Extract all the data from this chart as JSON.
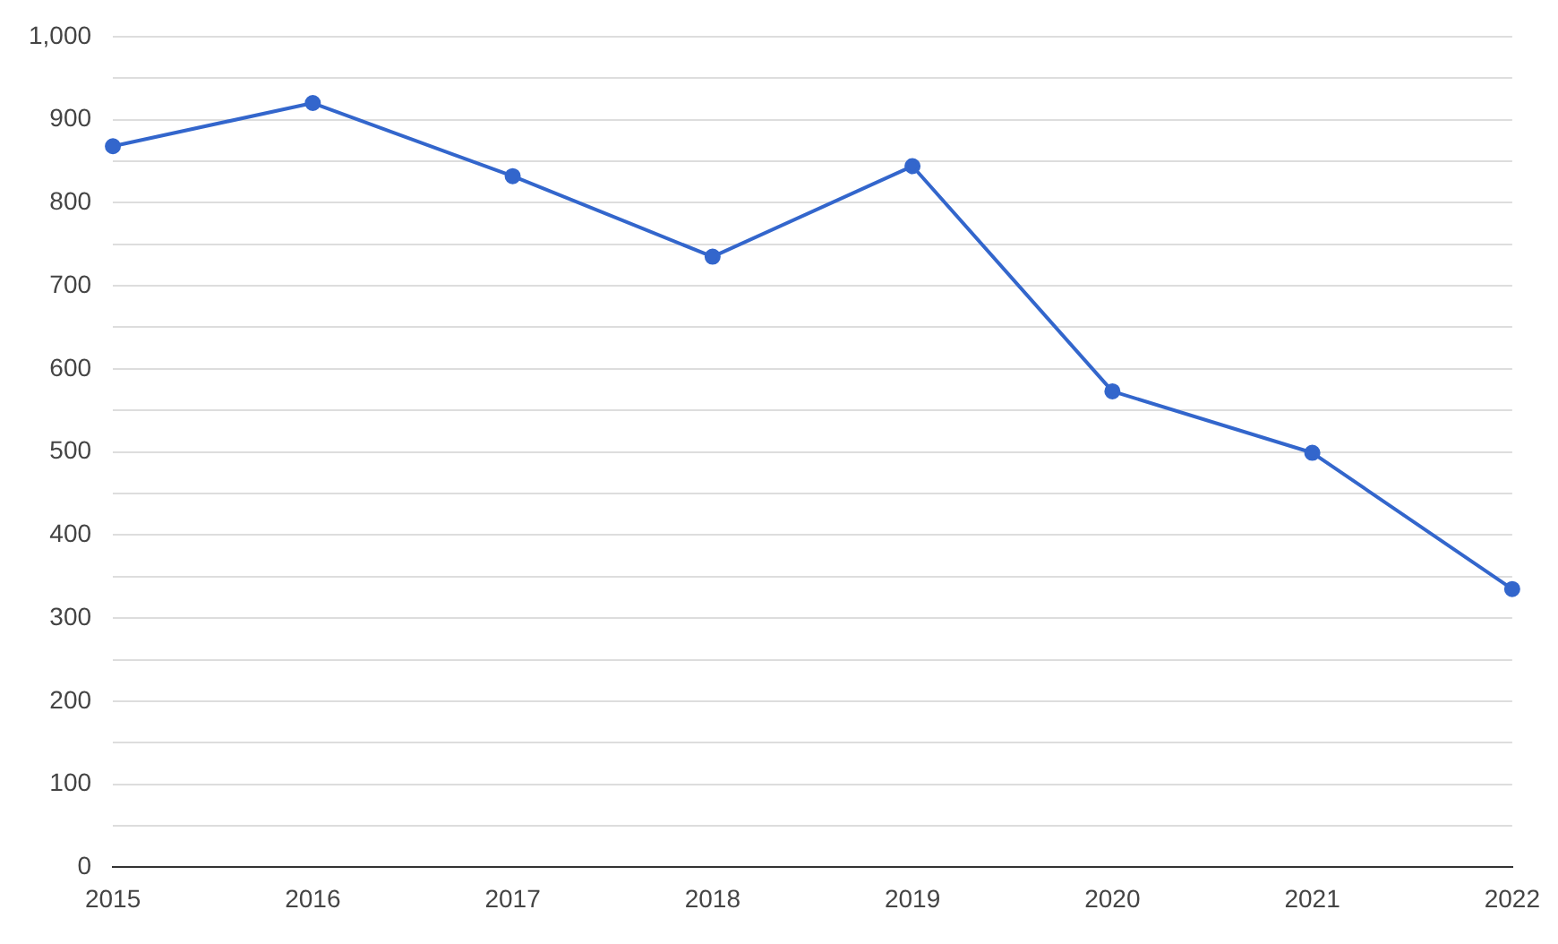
{
  "chart_data": {
    "type": "line",
    "categories": [
      "2015",
      "2016",
      "2017",
      "2018",
      "2019",
      "2020",
      "2021",
      "2022"
    ],
    "series": [
      {
        "color": "#3366cc",
        "values": [
          868,
          920,
          832,
          735,
          844,
          573,
          499,
          335
        ]
      }
    ],
    "ylim": [
      0,
      1000
    ],
    "yticks": [
      0,
      {
        "value": 50,
        "label": null
      },
      100,
      {
        "value": 150,
        "label": null
      },
      200,
      {
        "value": 250,
        "label": null
      },
      300,
      {
        "value": 350,
        "label": null
      },
      400,
      {
        "value": 450,
        "label": null
      },
      500,
      {
        "value": 550,
        "label": null
      },
      600,
      {
        "value": 650,
        "label": null
      },
      700,
      {
        "value": 750,
        "label": null
      },
      800,
      {
        "value": 850,
        "label": null
      },
      900,
      {
        "value": 950,
        "label": null
      },
      {
        "value": 1000,
        "label": "1,000"
      }
    ],
    "grid": "y",
    "legend": false,
    "marker": "circle",
    "line_style": "solid"
  }
}
